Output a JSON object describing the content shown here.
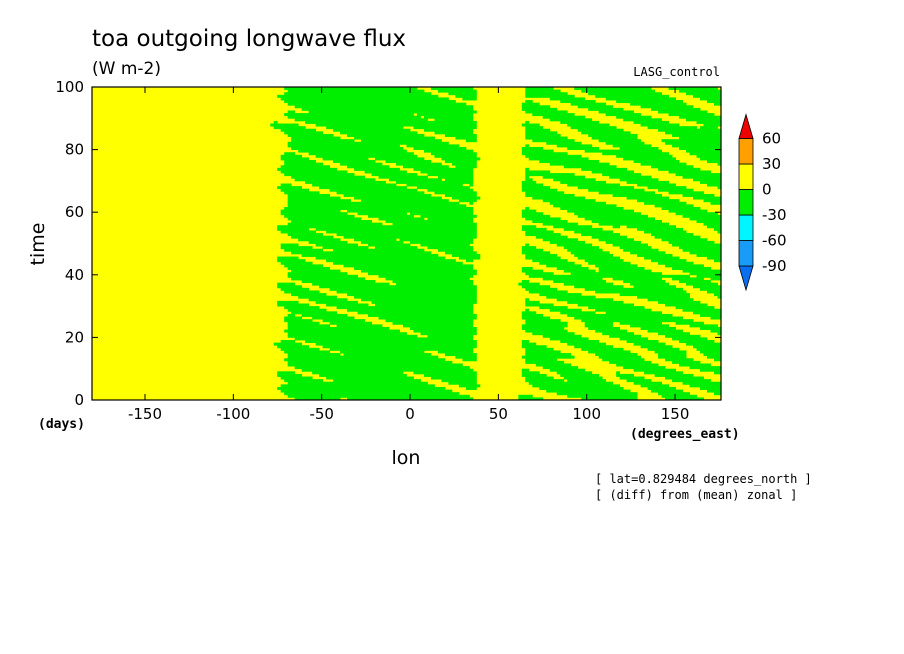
{
  "chart_data": {
    "type": "heatmap",
    "title": "toa outgoing longwave flux",
    "units": "(W m-2)",
    "experiment": "LASG_control",
    "xlabel": "lon",
    "xunits": "(degrees_east)",
    "ylabel": "time",
    "yunits": "(days)",
    "xlim": [
      -180,
      176
    ],
    "ylim": [
      0,
      100
    ],
    "xticks": [
      -150,
      -100,
      -50,
      0,
      50,
      100,
      150
    ],
    "xtick_labels": [
      "-150",
      "-100",
      "-50",
      "0",
      "50",
      "100",
      "150"
    ],
    "yticks": [
      0,
      20,
      40,
      60,
      80,
      100
    ],
    "ytick_labels": [
      "0",
      "20",
      "40",
      "60",
      "80",
      "100"
    ],
    "annotations": [
      "[ lat=0.829484 degrees_north ]",
      "[ (diff) from (mean) zonal ]"
    ],
    "colorbar": {
      "levels": [
        -90,
        -60,
        -30,
        0,
        30,
        60
      ],
      "level_labels": [
        "-90",
        "-60",
        "-30",
        "0",
        "30",
        "60"
      ],
      "colors": [
        "#0a6ef0",
        "#199cf7",
        "#00f5ff",
        "#00ee00",
        "#ffff00",
        "#ffa000",
        "#ee0000"
      ],
      "extend": "both"
    },
    "dominant_bands_lon": [
      {
        "range": [
          -180,
          -85
        ],
        "class": "positive (0 to 30)"
      },
      {
        "range": [
          -85,
          38
        ],
        "class": "mixed, mostly negative (-30 to 0)"
      },
      {
        "range": [
          38,
          60
        ],
        "class": "positive (0 to 30)"
      },
      {
        "range": [
          60,
          176
        ],
        "class": "mixed, negative/positive streaks"
      }
    ]
  }
}
